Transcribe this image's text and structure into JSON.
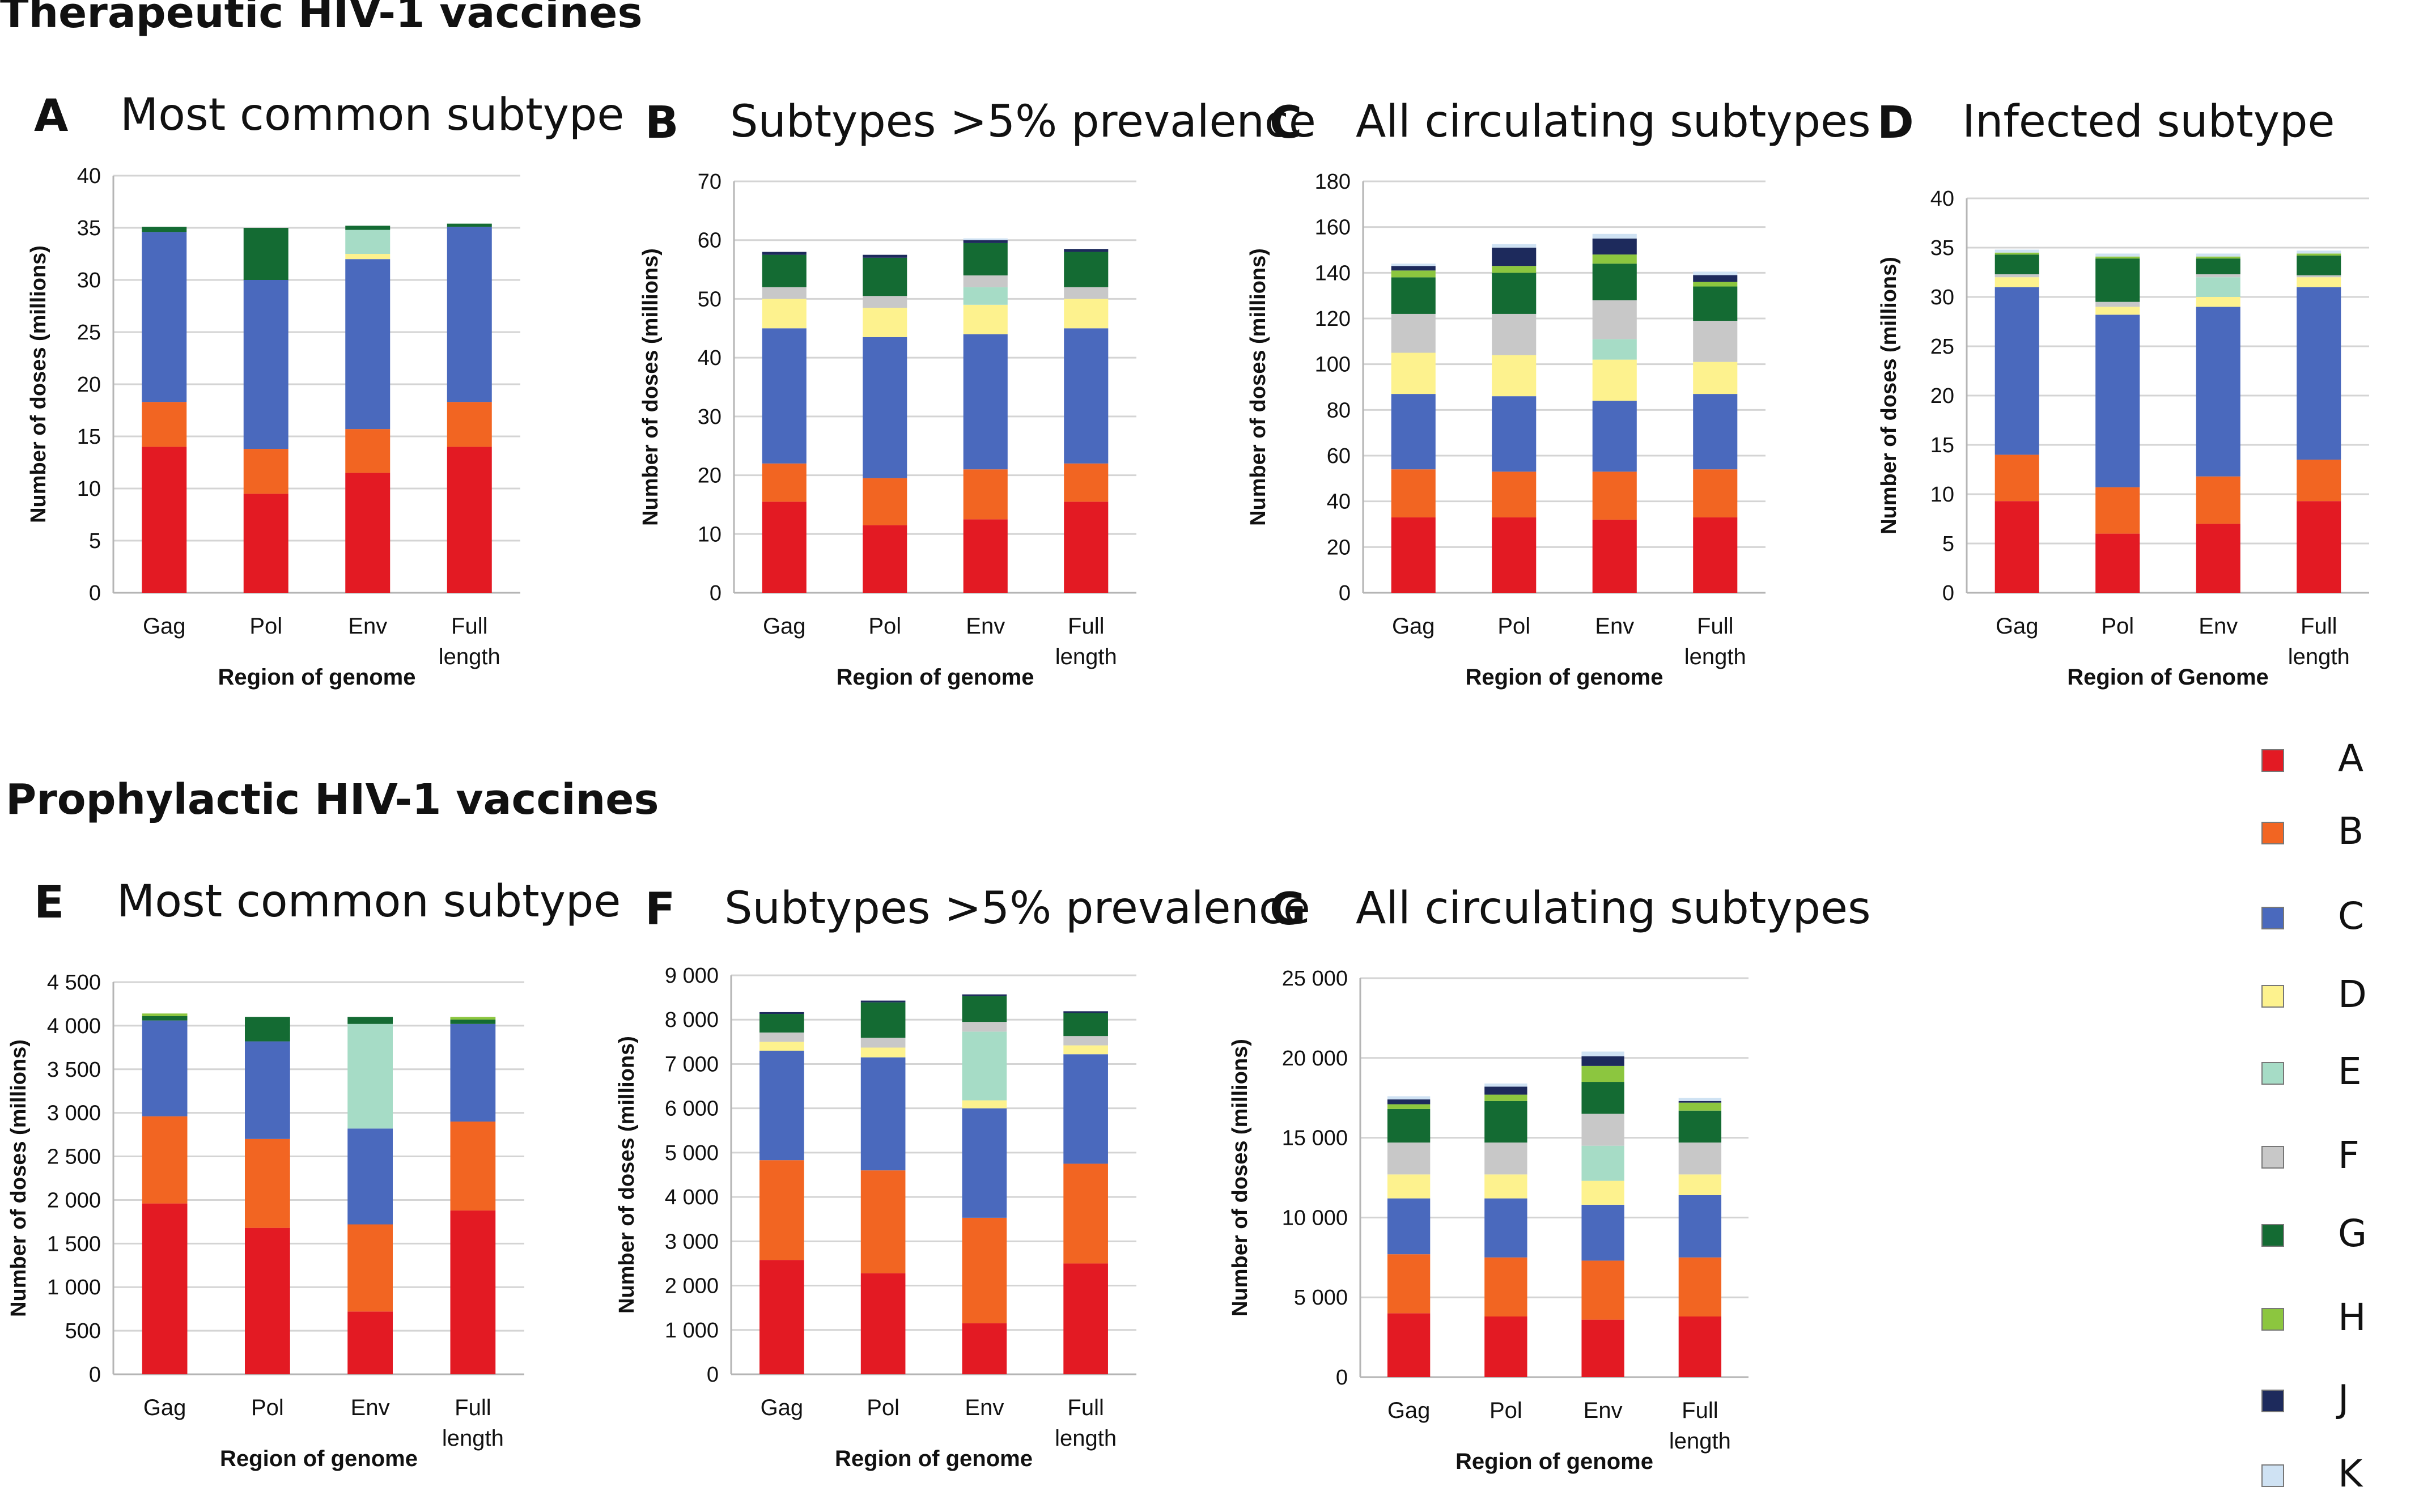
{
  "sections": {
    "therapeutic": "Therapeutic HIV-1 vaccines",
    "prophylactic": "Prophylactic HIV-1 vaccines"
  },
  "legend": [
    {
      "label": "A",
      "color": "#e31a23"
    },
    {
      "label": "B",
      "color": "#f26522"
    },
    {
      "label": "C",
      "color": "#4a69bd"
    },
    {
      "label": "D",
      "color": "#fdf28e"
    },
    {
      "label": "E",
      "color": "#a6dcc6"
    },
    {
      "label": "F",
      "color": "#c8c8c8"
    },
    {
      "label": "G",
      "color": "#146b33"
    },
    {
      "label": "H",
      "color": "#8cc63f"
    },
    {
      "label": "J",
      "color": "#1d2a5c"
    },
    {
      "label": "K",
      "color": "#cfe2f3"
    }
  ],
  "chart_data": [
    {
      "letter": "A",
      "title": "Most common subtype",
      "type": "bar",
      "stacked": true,
      "categories": [
        "Gag",
        "Pol",
        "Env",
        "Full length"
      ],
      "xlabel": "Region of genome",
      "ylabel": "Number of doses (millions)",
      "ylim": [
        0,
        40
      ],
      "yticks": [
        "0",
        "5",
        "10",
        "15",
        "20",
        "25",
        "30",
        "35",
        "40"
      ],
      "grid": true,
      "series": [
        {
          "name": "A",
          "values": [
            14,
            9.5,
            11.5,
            14
          ]
        },
        {
          "name": "B",
          "values": [
            4.3,
            4.3,
            4.2,
            4.3
          ]
        },
        {
          "name": "C",
          "values": [
            16.3,
            16.2,
            16.3,
            16.8
          ]
        },
        {
          "name": "D",
          "values": [
            0,
            0,
            0.5,
            0
          ]
        },
        {
          "name": "E",
          "values": [
            0,
            0,
            2.3,
            0
          ]
        },
        {
          "name": "F",
          "values": [
            0,
            0,
            0,
            0
          ]
        },
        {
          "name": "G",
          "values": [
            0.5,
            5,
            0.4,
            0.3
          ]
        },
        {
          "name": "H",
          "values": [
            0,
            0,
            0,
            0
          ]
        },
        {
          "name": "J",
          "values": [
            0,
            0,
            0,
            0
          ]
        },
        {
          "name": "K",
          "values": [
            0,
            0,
            0,
            0
          ]
        }
      ]
    },
    {
      "letter": "B",
      "title": "Subtypes >5% prevalence",
      "type": "bar",
      "stacked": true,
      "categories": [
        "Gag",
        "Pol",
        "Env",
        "Full length"
      ],
      "xlabel": "Region of genome",
      "ylabel": "Number of doses (millions)",
      "ylim": [
        0,
        70
      ],
      "yticks": [
        "0",
        "10",
        "20",
        "30",
        "40",
        "50",
        "60",
        "70"
      ],
      "grid": true,
      "series": [
        {
          "name": "A",
          "values": [
            15.5,
            11.5,
            12.5,
            15.5
          ]
        },
        {
          "name": "B",
          "values": [
            6.5,
            8,
            8.5,
            6.5
          ]
        },
        {
          "name": "C",
          "values": [
            23,
            24,
            23,
            23
          ]
        },
        {
          "name": "D",
          "values": [
            5,
            5,
            5,
            5
          ]
        },
        {
          "name": "E",
          "values": [
            0,
            0,
            3,
            0
          ]
        },
        {
          "name": "F",
          "values": [
            2,
            2,
            2,
            2
          ]
        },
        {
          "name": "G",
          "values": [
            5.5,
            6.5,
            5.5,
            6
          ]
        },
        {
          "name": "H",
          "values": [
            0,
            0,
            0,
            0
          ]
        },
        {
          "name": "J",
          "values": [
            0.5,
            0.5,
            0.5,
            0.5
          ]
        },
        {
          "name": "K",
          "values": [
            0,
            0,
            0.3,
            0
          ]
        }
      ]
    },
    {
      "letter": "C",
      "title": "All circulating subtypes",
      "type": "bar",
      "stacked": true,
      "categories": [
        "Gag",
        "Pol",
        "Env",
        "Full length"
      ],
      "xlabel": "Region of genome",
      "ylabel": "Number of doses (millions)",
      "ylim": [
        0,
        180
      ],
      "yticks": [
        "0",
        "20",
        "40",
        "60",
        "80",
        "100",
        "120",
        "140",
        "160",
        "180"
      ],
      "grid": true,
      "series": [
        {
          "name": "A",
          "values": [
            33,
            33,
            32,
            33
          ]
        },
        {
          "name": "B",
          "values": [
            21,
            20,
            21,
            21
          ]
        },
        {
          "name": "C",
          "values": [
            33,
            33,
            31,
            33
          ]
        },
        {
          "name": "D",
          "values": [
            18,
            18,
            18,
            14
          ]
        },
        {
          "name": "E",
          "values": [
            0,
            0,
            9,
            0
          ]
        },
        {
          "name": "F",
          "values": [
            17,
            18,
            17,
            18
          ]
        },
        {
          "name": "G",
          "values": [
            16,
            18,
            16,
            15
          ]
        },
        {
          "name": "H",
          "values": [
            3,
            3,
            4,
            2
          ]
        },
        {
          "name": "J",
          "values": [
            2,
            8,
            7,
            3
          ]
        },
        {
          "name": "K",
          "values": [
            1,
            1.5,
            2,
            1.5
          ]
        }
      ]
    },
    {
      "letter": "D",
      "title": "Infected subtype",
      "type": "bar",
      "stacked": true,
      "categories": [
        "Gag",
        "Pol",
        "Env",
        "Full length"
      ],
      "xlabel": "Region of Genome",
      "ylabel": "Number of doses (millions)",
      "ylim": [
        0,
        40
      ],
      "yticks": [
        "0",
        "5",
        "10",
        "15",
        "20",
        "25",
        "30",
        "35",
        "40"
      ],
      "grid": true,
      "series": [
        {
          "name": "A",
          "values": [
            9.3,
            6,
            7,
            9.3
          ]
        },
        {
          "name": "B",
          "values": [
            4.7,
            4.7,
            4.8,
            4.2
          ]
        },
        {
          "name": "C",
          "values": [
            17,
            17.5,
            17.2,
            17.5
          ]
        },
        {
          "name": "D",
          "values": [
            1,
            0.8,
            1,
            1
          ]
        },
        {
          "name": "E",
          "values": [
            0,
            0,
            2,
            0
          ]
        },
        {
          "name": "F",
          "values": [
            0.3,
            0.5,
            0.3,
            0.2
          ]
        },
        {
          "name": "G",
          "values": [
            2,
            4.4,
            1.6,
            2
          ]
        },
        {
          "name": "H",
          "values": [
            0.2,
            0.2,
            0.2,
            0.2
          ]
        },
        {
          "name": "J",
          "values": [
            0,
            0,
            0,
            0
          ]
        },
        {
          "name": "K",
          "values": [
            0.3,
            0.3,
            0.3,
            0.3
          ]
        }
      ]
    },
    {
      "letter": "E",
      "title": "Most common subtype",
      "type": "bar",
      "stacked": true,
      "categories": [
        "Gag",
        "Pol",
        "Env",
        "Full length"
      ],
      "xlabel": "Region of genome",
      "ylabel": "Number of doses (millions)",
      "ylim": [
        0,
        4500
      ],
      "yticks": [
        "0",
        "500",
        "1 000",
        "1 500",
        "2 000",
        "2 500",
        "3 000",
        "3 500",
        "4 000",
        "4 500"
      ],
      "grid": true,
      "series": [
        {
          "name": "A",
          "values": [
            1960,
            1680,
            720,
            1880
          ]
        },
        {
          "name": "B",
          "values": [
            1000,
            1020,
            1000,
            1020
          ]
        },
        {
          "name": "C",
          "values": [
            1100,
            1120,
            1100,
            1120
          ]
        },
        {
          "name": "D",
          "values": [
            0,
            0,
            0,
            0
          ]
        },
        {
          "name": "E",
          "values": [
            0,
            0,
            1200,
            0
          ]
        },
        {
          "name": "F",
          "values": [
            0,
            0,
            0,
            0
          ]
        },
        {
          "name": "G",
          "values": [
            50,
            280,
            80,
            50
          ]
        },
        {
          "name": "H",
          "values": [
            30,
            0,
            0,
            30
          ]
        },
        {
          "name": "J",
          "values": [
            0,
            0,
            0,
            0
          ]
        },
        {
          "name": "K",
          "values": [
            0,
            0,
            0,
            0
          ]
        }
      ]
    },
    {
      "letter": "F",
      "title": "Subtypes >5% prevalence",
      "type": "bar",
      "stacked": true,
      "categories": [
        "Gag",
        "Pol",
        "Env",
        "Full length"
      ],
      "xlabel": "Region of genome",
      "ylabel": "Number of doses (millions)",
      "ylim": [
        0,
        9000
      ],
      "yticks": [
        "0",
        "1 000",
        "2 000",
        "3 000",
        "4 000",
        "5 000",
        "6 000",
        "7 000",
        "8 000",
        "9 000"
      ],
      "grid": true,
      "series": [
        {
          "name": "A",
          "values": [
            2580,
            2280,
            1150,
            2500
          ]
        },
        {
          "name": "B",
          "values": [
            2250,
            2320,
            2380,
            2250
          ]
        },
        {
          "name": "C",
          "values": [
            2470,
            2550,
            2470,
            2470
          ]
        },
        {
          "name": "D",
          "values": [
            200,
            220,
            180,
            200
          ]
        },
        {
          "name": "E",
          "values": [
            0,
            0,
            1550,
            0
          ]
        },
        {
          "name": "F",
          "values": [
            210,
            220,
            220,
            210
          ]
        },
        {
          "name": "G",
          "values": [
            420,
            800,
            580,
            520
          ]
        },
        {
          "name": "H",
          "values": [
            0,
            0,
            0,
            0
          ]
        },
        {
          "name": "J",
          "values": [
            40,
            40,
            40,
            40
          ]
        },
        {
          "name": "K",
          "values": [
            0,
            0,
            0,
            0
          ]
        }
      ]
    },
    {
      "letter": "G",
      "title": "All circulating subtypes",
      "type": "bar",
      "stacked": true,
      "categories": [
        "Gag",
        "Pol",
        "Env",
        "Full length"
      ],
      "xlabel": "Region of genome",
      "ylabel": "Number of doses (millions)",
      "ylim": [
        0,
        25000
      ],
      "yticks": [
        "0",
        "5 000",
        "10 000",
        "15 000",
        "20 000",
        "25 000"
      ],
      "grid": true,
      "series": [
        {
          "name": "A",
          "values": [
            4000,
            3800,
            3600,
            3800
          ]
        },
        {
          "name": "B",
          "values": [
            3700,
            3700,
            3700,
            3700
          ]
        },
        {
          "name": "C",
          "values": [
            3500,
            3700,
            3500,
            3900
          ]
        },
        {
          "name": "D",
          "values": [
            1500,
            1500,
            1500,
            1300
          ]
        },
        {
          "name": "E",
          "values": [
            0,
            0,
            2200,
            0
          ]
        },
        {
          "name": "F",
          "values": [
            2000,
            2000,
            2000,
            2000
          ]
        },
        {
          "name": "G",
          "values": [
            2100,
            2600,
            2000,
            2000
          ]
        },
        {
          "name": "H",
          "values": [
            300,
            400,
            1000,
            500
          ]
        },
        {
          "name": "J",
          "values": [
            300,
            500,
            600,
            100
          ]
        },
        {
          "name": "K",
          "values": [
            200,
            200,
            300,
            200
          ]
        }
      ]
    }
  ]
}
